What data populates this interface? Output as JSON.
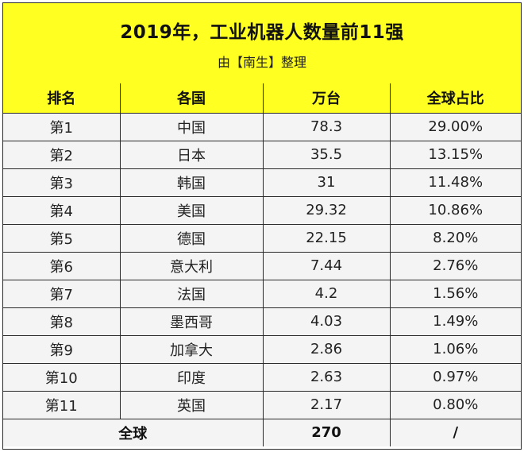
{
  "title": "2019年，工业机器人数量前11强",
  "subtitle": "由【南生】整理",
  "chart_data": {
    "type": "table",
    "columns": [
      "排名",
      "各国",
      "万台",
      "全球占比"
    ],
    "rows": [
      [
        "第1",
        "中国",
        "78.3",
        "29.00%"
      ],
      [
        "第2",
        "日本",
        "35.5",
        "13.15%"
      ],
      [
        "第3",
        "韩国",
        "31",
        "11.48%"
      ],
      [
        "第4",
        "美国",
        "29.32",
        "10.86%"
      ],
      [
        "第5",
        "德国",
        "22.15",
        "8.20%"
      ],
      [
        "第6",
        "意大利",
        "7.44",
        "2.76%"
      ],
      [
        "第7",
        "法国",
        "4.2",
        "1.56%"
      ],
      [
        "第8",
        "墨西哥",
        "4.03",
        "1.49%"
      ],
      [
        "第9",
        "加拿大",
        "2.86",
        "1.06%"
      ],
      [
        "第10",
        "印度",
        "2.63",
        "0.97%"
      ],
      [
        "第11",
        "英国",
        "2.17",
        "0.80%"
      ]
    ],
    "total": {
      "label": "全球",
      "value": "270",
      "share": "/"
    }
  },
  "colors": {
    "header_bg": "#ffff21",
    "body_bg": "#f4f4f4",
    "border": "#2a2a2a"
  }
}
